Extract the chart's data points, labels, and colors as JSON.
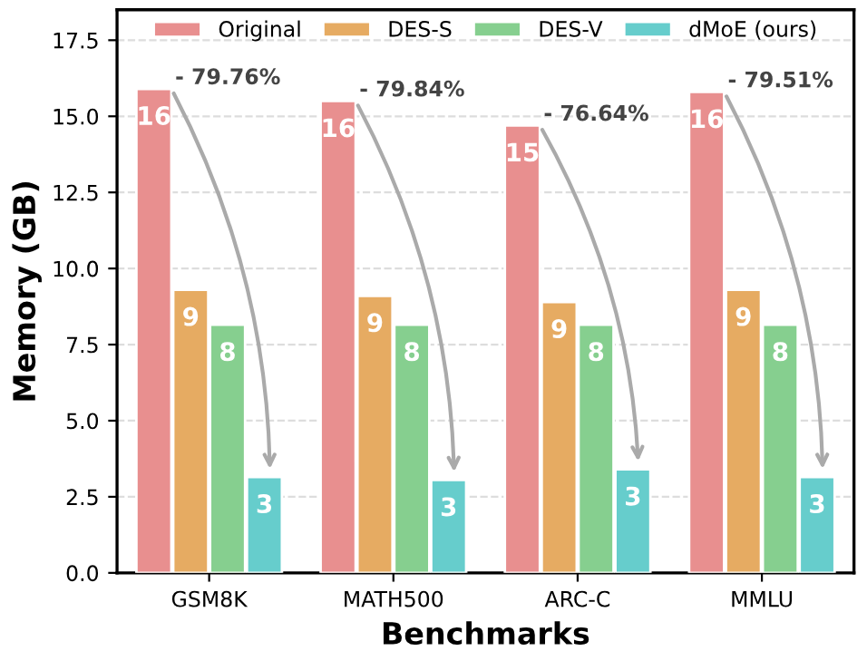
{
  "chart_data": {
    "type": "bar",
    "xlabel": "Benchmarks",
    "ylabel": "Memory (GB)",
    "categories": [
      "GSM8K",
      "MATH500",
      "ARC-C",
      "MMLU"
    ],
    "series": [
      {
        "name": "Original",
        "color": "#e88f8f",
        "values": [
          15.9,
          15.5,
          14.7,
          15.8
        ],
        "value_labels": [
          "16",
          "16",
          "15",
          "16"
        ]
      },
      {
        "name": "DES-S",
        "color": "#e6ab62",
        "values": [
          9.3,
          9.1,
          8.9,
          9.3
        ],
        "value_labels": [
          "9",
          "9",
          "9",
          "9"
        ]
      },
      {
        "name": "DES-V",
        "color": "#86cf8f",
        "values": [
          8.15,
          8.15,
          8.15,
          8.15
        ],
        "value_labels": [
          "8",
          "8",
          "8",
          "8"
        ]
      },
      {
        "name": "dMoE (ours)",
        "color": "#66cdcc",
        "values": [
          3.15,
          3.05,
          3.4,
          3.15
        ],
        "value_labels": [
          "3",
          "3",
          "3",
          "3"
        ]
      }
    ],
    "annotations": [
      "- 79.76%",
      "- 79.84%",
      "- 76.64%",
      "- 79.51%"
    ],
    "ylim": [
      0,
      18.5
    ],
    "yticks": [
      {
        "value": 0,
        "label": "0.0"
      },
      {
        "value": 2.5,
        "label": "2.5"
      },
      {
        "value": 5,
        "label": "5.0"
      },
      {
        "value": 7.5,
        "label": "7.5"
      },
      {
        "value": 10,
        "label": "10.0"
      },
      {
        "value": 12.5,
        "label": "12.5"
      },
      {
        "value": 15,
        "label": "15.0"
      },
      {
        "value": 17.5,
        "label": "17.5"
      }
    ],
    "grid": "y",
    "legend": "top"
  }
}
